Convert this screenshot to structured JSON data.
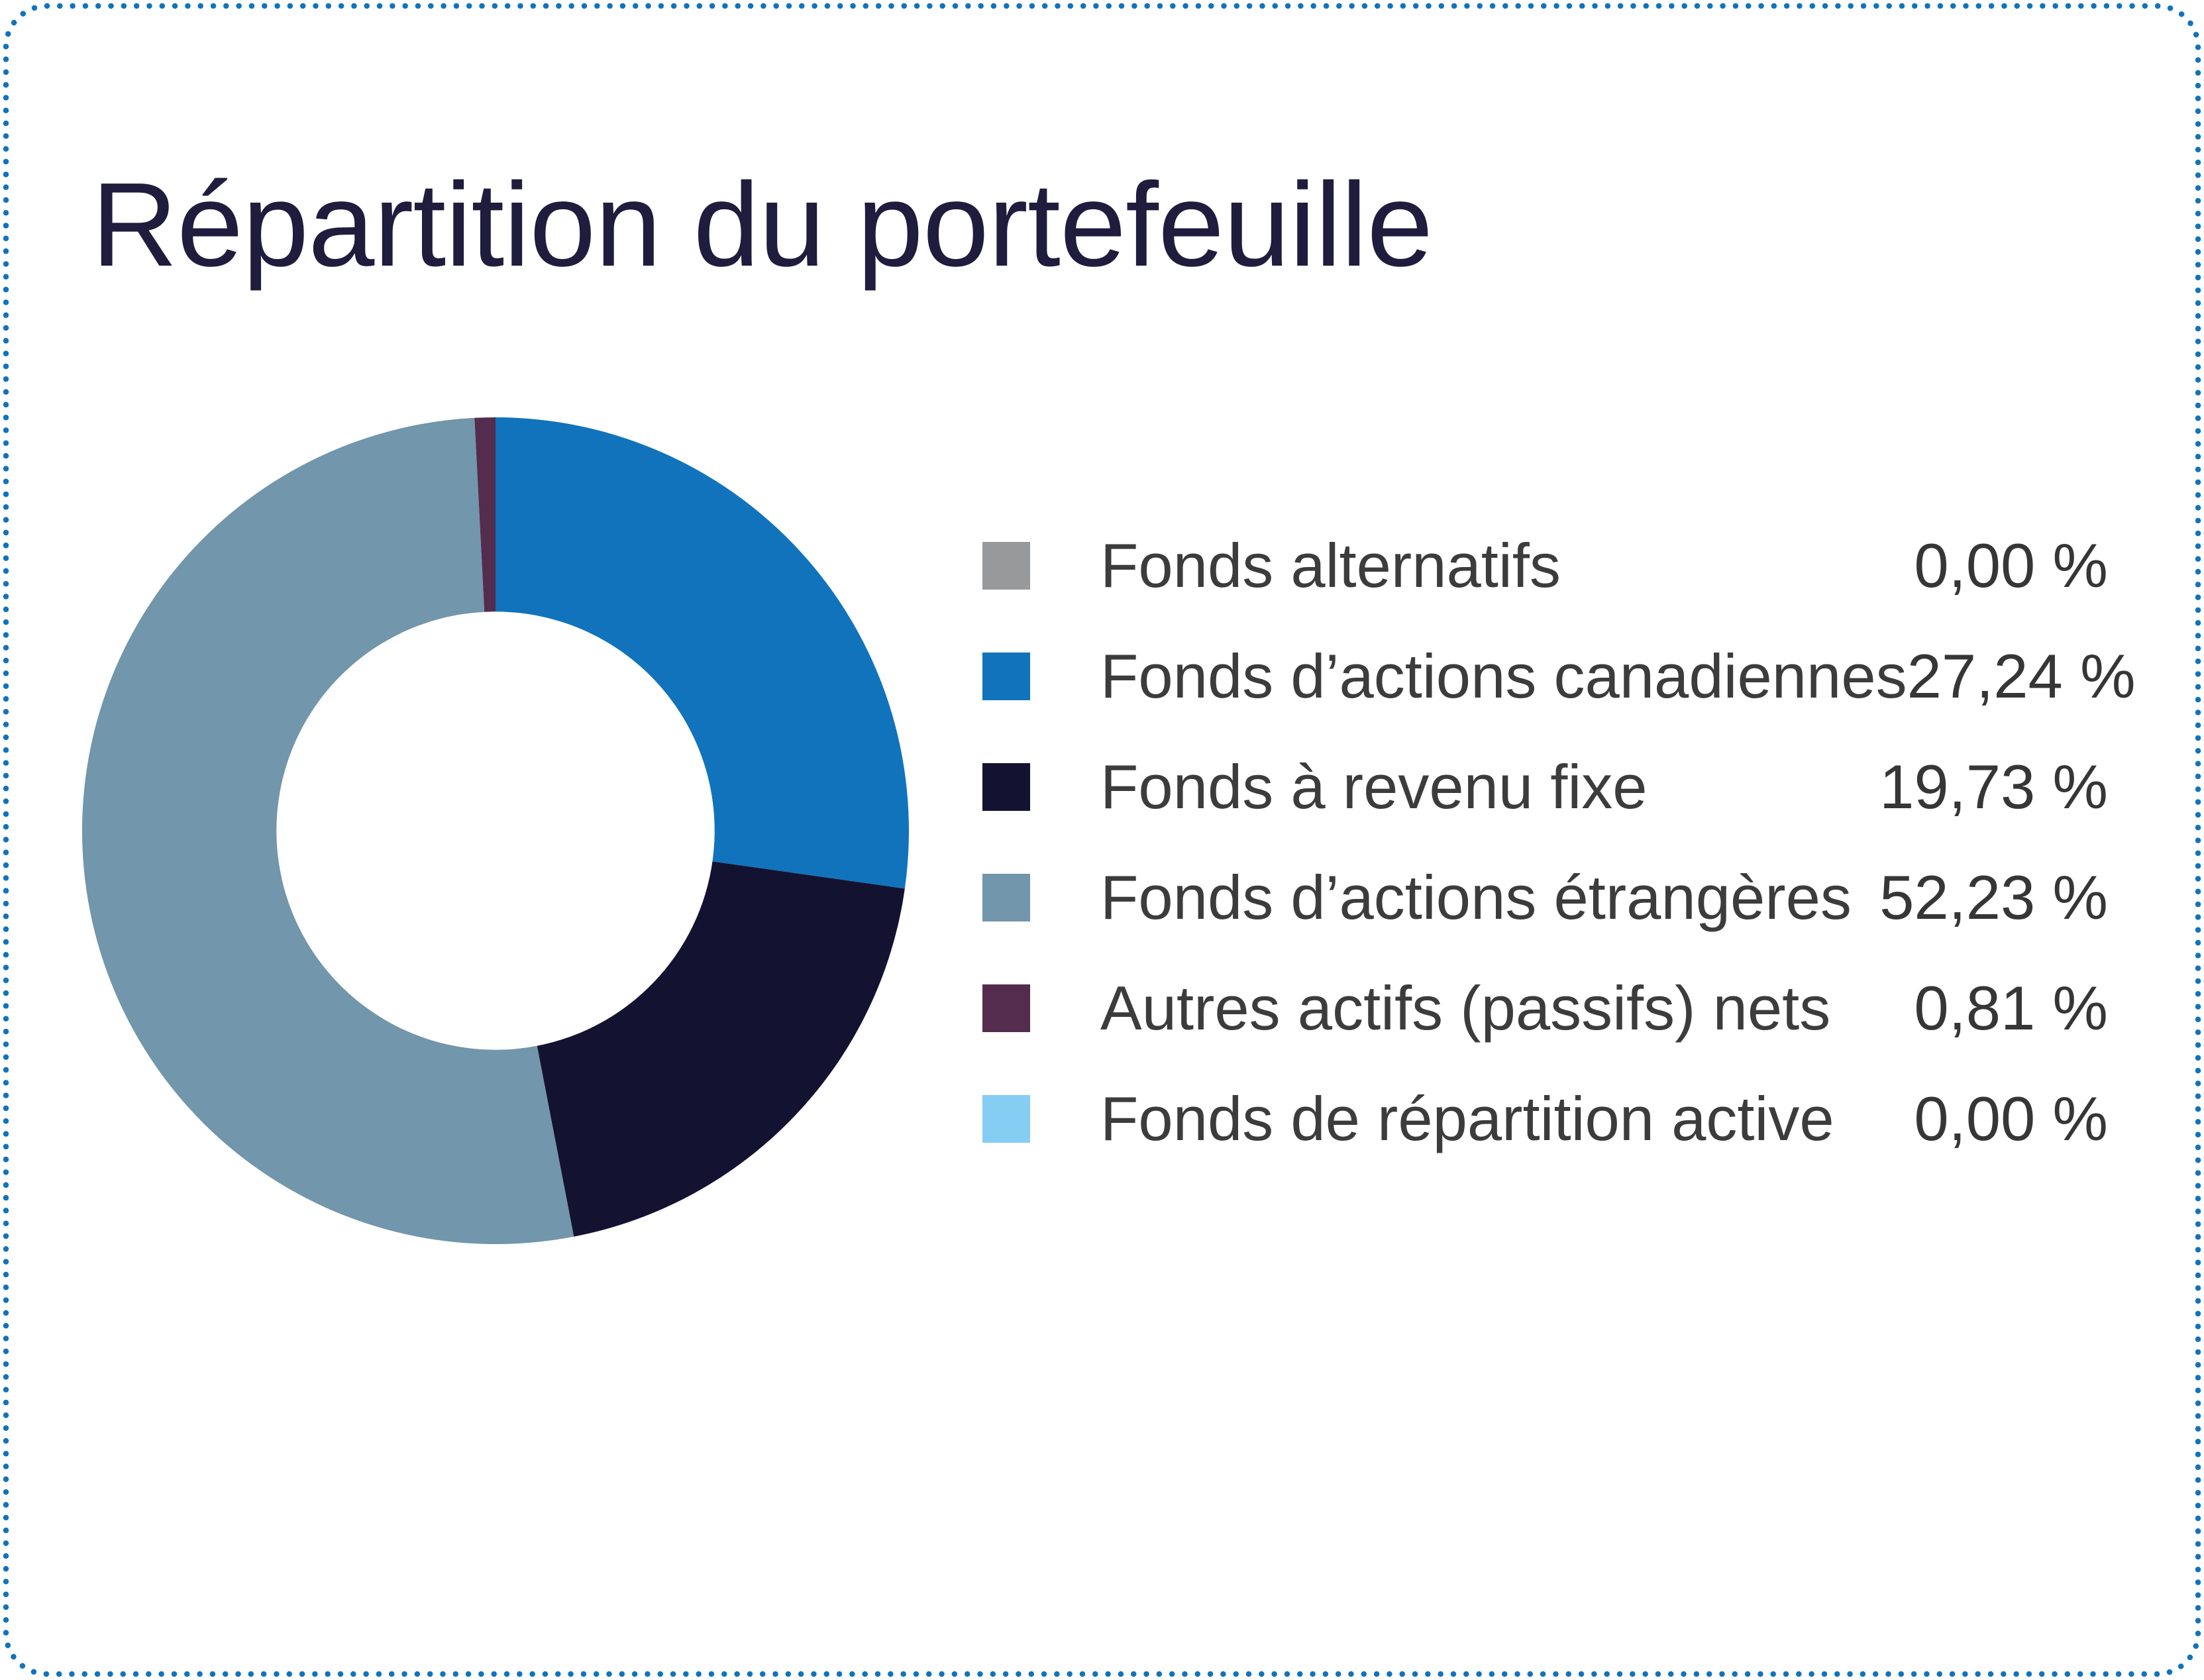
{
  "title": "Répartition du portefeuille",
  "colors": {
    "background": "#ffffff",
    "border_dot": "#1173bc",
    "title_text": "#1f1c3d",
    "legend_label_text": "#3c3c3c",
    "legend_value_text": "#363636",
    "donut_hole": "#ffffff"
  },
  "chart_data": {
    "type": "pie",
    "variant": "donut",
    "title": "Répartition du portefeuille",
    "legend_position": "right",
    "start_angle_deg": 0,
    "direction": "clockwise",
    "inner_radius_ratio": 0.53,
    "series": [
      {
        "label": "Fonds alternatifs",
        "value": 0.0,
        "value_label": "0,00 %",
        "color": "#97999b"
      },
      {
        "label": "Fonds d’actions canadiennes",
        "value": 27.24,
        "value_label": "27,24 %",
        "color": "#1173bc"
      },
      {
        "label": "Fonds à revenu fixe",
        "value": 19.73,
        "value_label": "19,73 %",
        "color": "#141231"
      },
      {
        "label": "Fonds d’actions étrangères",
        "value": 52.23,
        "value_label": "52,23 %",
        "color": "#7296ab"
      },
      {
        "label": "Autres actifs (passifs) nets",
        "value": 0.81,
        "value_label": "0,81 %",
        "color": "#532c4e"
      },
      {
        "label": "Fonds de répartition active",
        "value": 0.0,
        "value_label": "0,00 %",
        "color": "#85cdf3"
      }
    ]
  }
}
